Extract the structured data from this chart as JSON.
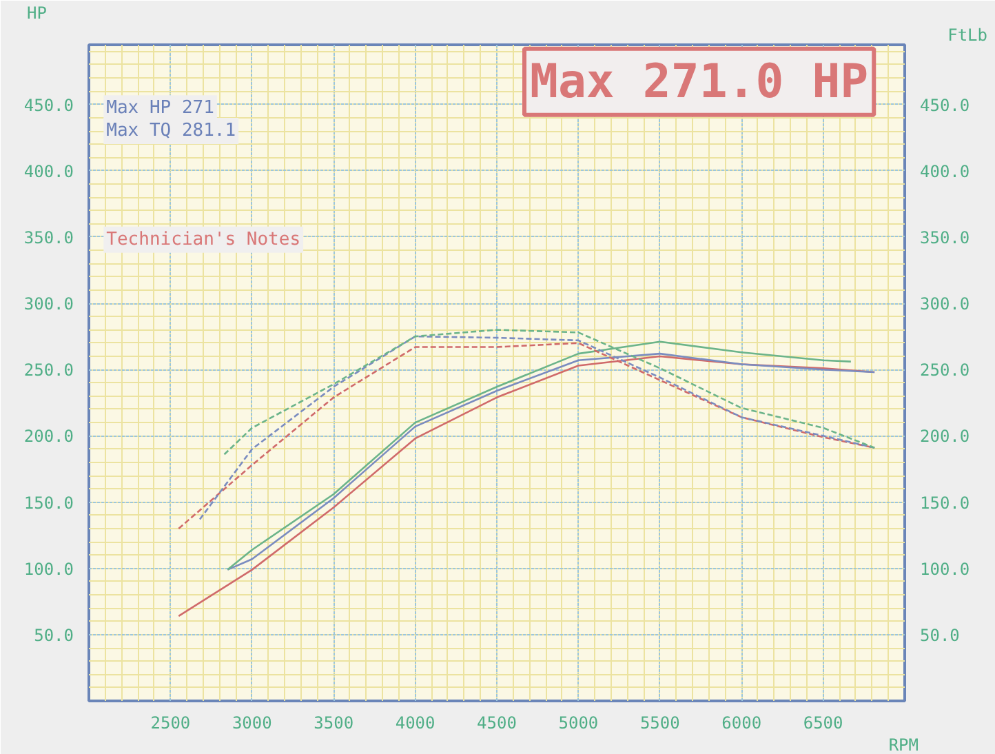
{
  "chart_data": {
    "type": "line",
    "xlabel": "RPM",
    "ylabel": "HP",
    "y2label": "FtLb",
    "annotations": [
      "Max 271.0 HP",
      "Max HP 271",
      "Max TQ 281.1",
      "Technician's Notes"
    ],
    "xlim": [
      2000,
      7000
    ],
    "xticks": [
      2500,
      3000,
      3500,
      4000,
      4500,
      5000,
      5500,
      6000,
      6500
    ],
    "ylim": [
      0,
      495
    ],
    "yticks": [
      {
        "value": 50,
        "label": "50.0"
      },
      {
        "value": 100,
        "label": "100.0"
      },
      {
        "value": 150,
        "label": "150.0"
      },
      {
        "value": 200,
        "label": "200.0"
      },
      {
        "value": 250,
        "label": "250.0"
      },
      {
        "value": 300,
        "label": "300.0"
      },
      {
        "value": 350,
        "label": "350.0"
      },
      {
        "value": 400,
        "label": "400.0"
      },
      {
        "value": 450,
        "label": "450.0"
      }
    ],
    "y2lim": [
      0,
      495
    ],
    "y2ticks": [
      {
        "value": 50,
        "label": "50.0"
      },
      {
        "value": 100,
        "label": "100.0"
      },
      {
        "value": 150,
        "label": "150.0"
      },
      {
        "value": 200,
        "label": "200.0"
      },
      {
        "value": 250,
        "label": "250.0"
      },
      {
        "value": 300,
        "label": "300.0"
      },
      {
        "value": 350,
        "label": "350.0"
      },
      {
        "value": 400,
        "label": "400.0"
      },
      {
        "value": 450,
        "label": "450.0"
      }
    ],
    "grid": true,
    "marker": "none",
    "series": [
      {
        "color": "#d06a6a",
        "line_style": "solid",
        "x": [
          2550,
          3000,
          3500,
          4000,
          4500,
          5000,
          5500,
          6000,
          6500,
          6815
        ],
        "values": [
          64,
          99,
          146,
          198,
          229,
          253,
          260,
          254,
          251,
          248
        ]
      },
      {
        "color": "#7a8cc0",
        "line_style": "solid",
        "x": [
          2850,
          3000,
          3500,
          4000,
          4500,
          5000,
          5500,
          6000,
          6500,
          6815
        ],
        "values": [
          99,
          107,
          153,
          207,
          234,
          257,
          262,
          254,
          250,
          248
        ]
      },
      {
        "color": "#6bb48a",
        "line_style": "solid",
        "x": [
          2850,
          3000,
          3500,
          4000,
          4500,
          5000,
          5500,
          6000,
          6500,
          6670
        ],
        "values": [
          99,
          114,
          156,
          210,
          237,
          262,
          271,
          263,
          257,
          256
        ]
      },
      {
        "color": "#d06a6a",
        "line_style": "dashed",
        "x": [
          2550,
          3000,
          3500,
          4000,
          4500,
          5000,
          5500,
          6000,
          6500,
          6815
        ],
        "values": [
          130,
          178,
          229,
          267,
          267,
          270,
          242,
          214,
          199,
          191
        ]
      },
      {
        "color": "#7a8cc0",
        "line_style": "dashed",
        "x": [
          2680,
          3000,
          3500,
          4000,
          4500,
          5000,
          5500,
          6000,
          6500,
          6815
        ],
        "values": [
          137,
          190,
          237,
          275,
          274,
          272,
          244,
          214,
          200,
          191
        ]
      },
      {
        "color": "#6bb48a",
        "line_style": "dashed",
        "x": [
          2830,
          3000,
          3500,
          4000,
          4500,
          5000,
          5500,
          6000,
          6500,
          6815
        ],
        "values": [
          186,
          206,
          239,
          275,
          280,
          278,
          251,
          221,
          206,
          191
        ]
      }
    ]
  }
}
